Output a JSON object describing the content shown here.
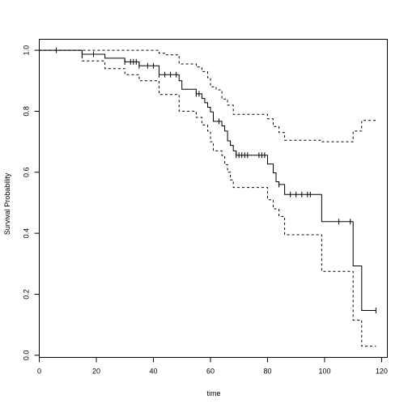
{
  "chart_data": {
    "type": "line",
    "title": "",
    "xlabel": "time",
    "ylabel": "Survival Probability",
    "xlim": [
      0,
      122
    ],
    "ylim": [
      -0.007,
      1.036
    ],
    "x_ticks": [
      0,
      20,
      40,
      60,
      80,
      100,
      120
    ],
    "y_ticks": [
      0.0,
      0.2,
      0.4,
      0.6,
      0.8,
      1.0
    ],
    "x_tick_labels": [
      "0",
      "20",
      "40",
      "60",
      "80",
      "100",
      "120"
    ],
    "y_tick_labels": [
      "0.0",
      "0.2",
      "0.4",
      "0.6",
      "0.8",
      "1.0"
    ],
    "grid": false,
    "legend": "none",
    "series": [
      {
        "role": "estimate",
        "line_style": "solid",
        "color": "#000000",
        "steps": [
          [
            0,
            1.0
          ],
          [
            15,
            0.987
          ],
          [
            23,
            0.974
          ],
          [
            30,
            0.962
          ],
          [
            35,
            0.949
          ],
          [
            38,
            0.949
          ],
          [
            42,
            0.92
          ],
          [
            49,
            0.9
          ],
          [
            50,
            0.872
          ],
          [
            55,
            0.857
          ],
          [
            57,
            0.842
          ],
          [
            58,
            0.828
          ],
          [
            59,
            0.813
          ],
          [
            60,
            0.798
          ],
          [
            61,
            0.767
          ],
          [
            64,
            0.752
          ],
          [
            65,
            0.735
          ],
          [
            66,
            0.703
          ],
          [
            67,
            0.688
          ],
          [
            68,
            0.67
          ],
          [
            69,
            0.656
          ],
          [
            80,
            0.627
          ],
          [
            82,
            0.598
          ],
          [
            83,
            0.569
          ],
          [
            84,
            0.56
          ],
          [
            86,
            0.527
          ],
          [
            99,
            0.438
          ],
          [
            110,
            0.293
          ],
          [
            113,
            0.147
          ],
          [
            118,
            0.147
          ]
        ],
        "censor_times": [
          6,
          15,
          19,
          30,
          32,
          33,
          34,
          35,
          38,
          40,
          42,
          44,
          46,
          48,
          55,
          56,
          63,
          69,
          70,
          71,
          72,
          73,
          77,
          78,
          79,
          84,
          88,
          90,
          92,
          94,
          95,
          105,
          109,
          118
        ]
      },
      {
        "role": "upper confidence bound",
        "line_style": "dashed",
        "color": "#000000",
        "steps": [
          [
            0,
            1.0
          ],
          [
            42,
            0.99
          ],
          [
            44,
            0.985
          ],
          [
            49,
            0.955
          ],
          [
            55,
            0.945
          ],
          [
            57,
            0.93
          ],
          [
            59,
            0.91
          ],
          [
            60,
            0.88
          ],
          [
            62,
            0.87
          ],
          [
            64,
            0.84
          ],
          [
            66,
            0.82
          ],
          [
            68,
            0.79
          ],
          [
            80,
            0.775
          ],
          [
            82,
            0.75
          ],
          [
            84,
            0.73
          ],
          [
            86,
            0.705
          ],
          [
            99,
            0.7
          ],
          [
            110,
            0.735
          ],
          [
            113,
            0.77
          ],
          [
            118,
            0.77
          ]
        ]
      },
      {
        "role": "lower confidence bound",
        "line_style": "dashed",
        "color": "#000000",
        "steps": [
          [
            0,
            1.0
          ],
          [
            15,
            0.965
          ],
          [
            23,
            0.94
          ],
          [
            30,
            0.92
          ],
          [
            35,
            0.9
          ],
          [
            42,
            0.855
          ],
          [
            49,
            0.8
          ],
          [
            55,
            0.78
          ],
          [
            57,
            0.755
          ],
          [
            59,
            0.735
          ],
          [
            60,
            0.7
          ],
          [
            61,
            0.67
          ],
          [
            64,
            0.655
          ],
          [
            65,
            0.625
          ],
          [
            66,
            0.6
          ],
          [
            67,
            0.575
          ],
          [
            68,
            0.55
          ],
          [
            80,
            0.51
          ],
          [
            82,
            0.48
          ],
          [
            84,
            0.455
          ],
          [
            86,
            0.395
          ],
          [
            99,
            0.275
          ],
          [
            110,
            0.115
          ],
          [
            113,
            0.03
          ],
          [
            118,
            0.03
          ]
        ]
      }
    ]
  }
}
